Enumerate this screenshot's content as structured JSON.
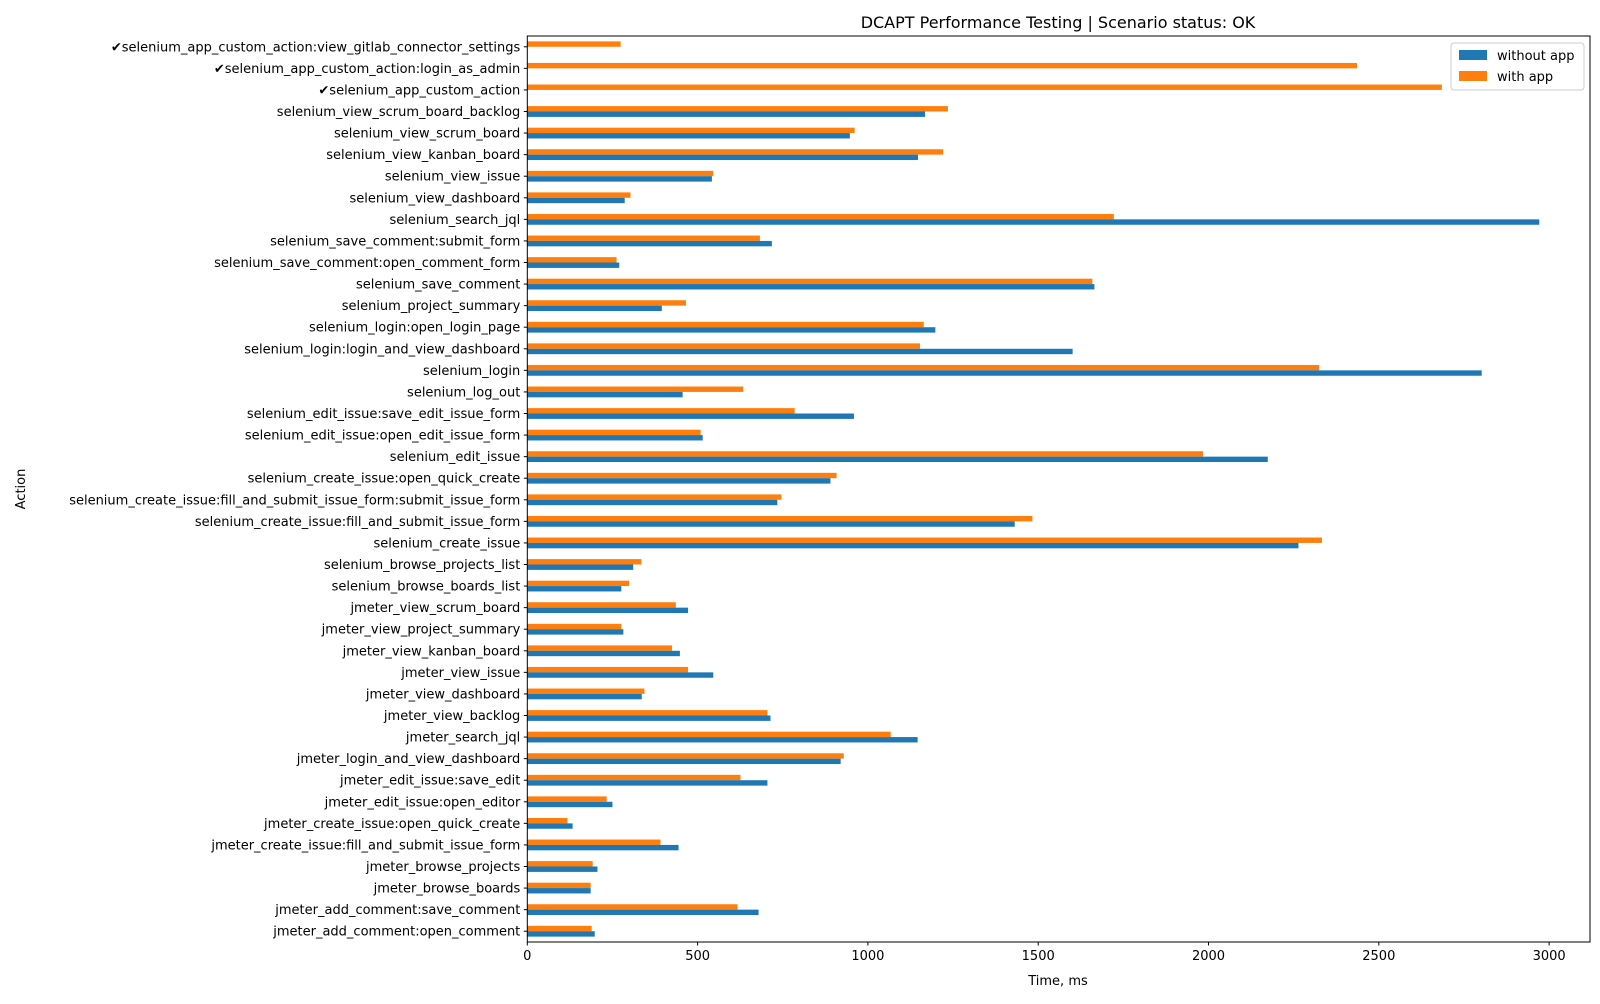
{
  "chart_data": {
    "type": "bar",
    "orientation": "horizontal",
    "title": "DCAPT Performance Testing | Scenario status: OK",
    "xlabel": "Time, ms",
    "ylabel": "Action",
    "xlim": [
      0,
      3120
    ],
    "xticks": [
      0,
      500,
      1000,
      1500,
      2000,
      2500,
      3000
    ],
    "grid": false,
    "legend_position": "top-right",
    "categories": [
      "✔selenium_app_custom_action:view_gitlab_connector_settings",
      "✔selenium_app_custom_action:login_as_admin",
      "✔selenium_app_custom_action",
      "selenium_view_scrum_board_backlog",
      "selenium_view_scrum_board",
      "selenium_view_kanban_board",
      "selenium_view_issue",
      "selenium_view_dashboard",
      "selenium_search_jql",
      "selenium_save_comment:submit_form",
      "selenium_save_comment:open_comment_form",
      "selenium_save_comment",
      "selenium_project_summary",
      "selenium_login:open_login_page",
      "selenium_login:login_and_view_dashboard",
      "selenium_login",
      "selenium_log_out",
      "selenium_edit_issue:save_edit_issue_form",
      "selenium_edit_issue:open_edit_issue_form",
      "selenium_edit_issue",
      "selenium_create_issue:open_quick_create",
      "selenium_create_issue:fill_and_submit_issue_form:submit_issue_form",
      "selenium_create_issue:fill_and_submit_issue_form",
      "selenium_create_issue",
      "selenium_browse_projects_list",
      "selenium_browse_boards_list",
      "jmeter_view_scrum_board",
      "jmeter_view_project_summary",
      "jmeter_view_kanban_board",
      "jmeter_view_issue",
      "jmeter_view_dashboard",
      "jmeter_view_backlog",
      "jmeter_search_jql",
      "jmeter_login_and_view_dashboard",
      "jmeter_edit_issue:save_edit",
      "jmeter_edit_issue:open_editor",
      "jmeter_create_issue:open_quick_create",
      "jmeter_create_issue:fill_and_submit_issue_form",
      "jmeter_browse_projects",
      "jmeter_browse_boards",
      "jmeter_add_comment:save_comment",
      "jmeter_add_comment:open_comment"
    ],
    "series": [
      {
        "name": "without app",
        "color": "#1f77b4",
        "values": [
          null,
          null,
          null,
          1168,
          947,
          1147,
          542,
          286,
          2971,
          718,
          270,
          1665,
          395,
          1198,
          1601,
          2802,
          456,
          959,
          515,
          2174,
          890,
          734,
          1431,
          2264,
          311,
          276,
          472,
          282,
          448,
          546,
          336,
          714,
          1146,
          920,
          705,
          250,
          133,
          444,
          206,
          186,
          679,
          198
        ]
      },
      {
        "name": "with app",
        "color": "#ff7f0e",
        "values": [
          274,
          2436,
          2685,
          1235,
          961,
          1221,
          546,
          303,
          1722,
          683,
          262,
          1659,
          466,
          1164,
          1153,
          2325,
          634,
          785,
          509,
          1984,
          908,
          746,
          1483,
          2333,
          335,
          299,
          436,
          276,
          425,
          472,
          344,
          705,
          1067,
          929,
          626,
          233,
          118,
          391,
          192,
          186,
          617,
          189
        ]
      }
    ]
  }
}
